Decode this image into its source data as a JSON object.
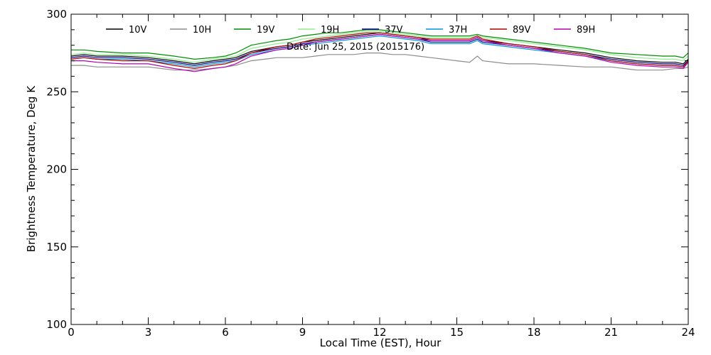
{
  "chart_data": {
    "type": "line",
    "title": "",
    "annotation": "Date: Jun 25, 2015 (2015176)",
    "xlabel": "Local Time (EST), Hour",
    "ylabel": "Brightness Temperature, Deg K",
    "xlim": [
      0,
      24
    ],
    "ylim": [
      100,
      300
    ],
    "xticks": [
      0,
      3,
      6,
      9,
      12,
      15,
      18,
      21,
      24
    ],
    "yticks": [
      100,
      150,
      200,
      250,
      300
    ],
    "grid": false,
    "legend_position": "top",
    "x": [
      0,
      0.5,
      1,
      2,
      3,
      4,
      4.8,
      5.5,
      6,
      6.4,
      7,
      8,
      8.5,
      9,
      9.5,
      10,
      10.5,
      11,
      11.5,
      12,
      12.5,
      13,
      13.5,
      14,
      14.5,
      15,
      15.5,
      15.8,
      16,
      17,
      17.5,
      18,
      19,
      20,
      21,
      22,
      23,
      23.5,
      23.8,
      24
    ],
    "series": [
      {
        "name": "10V",
        "color": "#000000",
        "values": [
          273,
          274,
          273,
          273,
          272,
          270,
          268,
          270,
          271,
          272,
          276,
          279,
          280,
          282,
          283,
          284,
          285,
          286,
          287,
          288,
          287,
          286,
          285,
          283,
          283,
          283,
          283,
          285,
          283,
          281,
          280,
          279,
          277,
          275,
          272,
          270,
          269,
          269,
          268,
          271
        ]
      },
      {
        "name": "10H",
        "color": "#8c8c8c",
        "values": [
          267,
          267,
          266,
          266,
          266,
          264,
          264,
          265,
          266,
          267,
          270,
          272,
          272,
          272,
          273,
          274,
          274,
          274,
          275,
          275,
          274,
          274,
          273,
          272,
          271,
          270,
          269,
          273,
          270,
          268,
          268,
          268,
          267,
          266,
          266,
          264,
          264,
          265,
          265,
          266
        ]
      },
      {
        "name": "19V",
        "color": "#008c00",
        "values": [
          277,
          277,
          276,
          275,
          275,
          273,
          271,
          272,
          273,
          275,
          280,
          283,
          284,
          286,
          287,
          288,
          288,
          289,
          290,
          290,
          289,
          288,
          287,
          286,
          286,
          286,
          286,
          287,
          286,
          284,
          283,
          282,
          280,
          278,
          275,
          274,
          273,
          273,
          272,
          275
        ]
      },
      {
        "name": "19H",
        "color": "#90ee90",
        "values": [
          274,
          275,
          274,
          274,
          273,
          271,
          269,
          271,
          272,
          273,
          278,
          281,
          282,
          284,
          285,
          286,
          287,
          288,
          289,
          289,
          288,
          287,
          286,
          285,
          285,
          285,
          285,
          286,
          285,
          283,
          282,
          281,
          279,
          277,
          274,
          272,
          271,
          271,
          270,
          273
        ]
      },
      {
        "name": "37V",
        "color": "#00008c",
        "values": [
          272,
          273,
          272,
          272,
          271,
          269,
          267,
          269,
          270,
          271,
          275,
          278,
          279,
          281,
          282,
          283,
          284,
          285,
          286,
          287,
          286,
          285,
          284,
          282,
          282,
          282,
          282,
          284,
          282,
          280,
          279,
          278,
          276,
          274,
          271,
          269,
          268,
          268,
          267,
          270
        ]
      },
      {
        "name": "37H",
        "color": "#0096dc",
        "values": [
          271,
          272,
          271,
          271,
          270,
          268,
          266,
          268,
          269,
          270,
          274,
          277,
          278,
          280,
          281,
          282,
          283,
          284,
          285,
          286,
          285,
          284,
          283,
          281,
          281,
          281,
          281,
          283,
          281,
          279,
          278,
          277,
          275,
          273,
          270,
          268,
          267,
          267,
          266,
          269
        ]
      },
      {
        "name": "89V",
        "color": "#b40000",
        "values": [
          271,
          272,
          271,
          270,
          270,
          267,
          265,
          267,
          268,
          270,
          275,
          279,
          280,
          282,
          284,
          285,
          286,
          287,
          288,
          288,
          287,
          286,
          285,
          284,
          284,
          284,
          284,
          286,
          284,
          281,
          280,
          279,
          276,
          274,
          270,
          268,
          267,
          267,
          266,
          270
        ]
      },
      {
        "name": "89H",
        "color": "#b400b4",
        "values": [
          270,
          270,
          269,
          268,
          268,
          265,
          263,
          265,
          266,
          268,
          273,
          277,
          278,
          280,
          282,
          283,
          284,
          285,
          286,
          287,
          286,
          285,
          284,
          283,
          283,
          283,
          283,
          285,
          283,
          280,
          279,
          278,
          275,
          273,
          269,
          267,
          266,
          266,
          265,
          269
        ]
      }
    ]
  }
}
